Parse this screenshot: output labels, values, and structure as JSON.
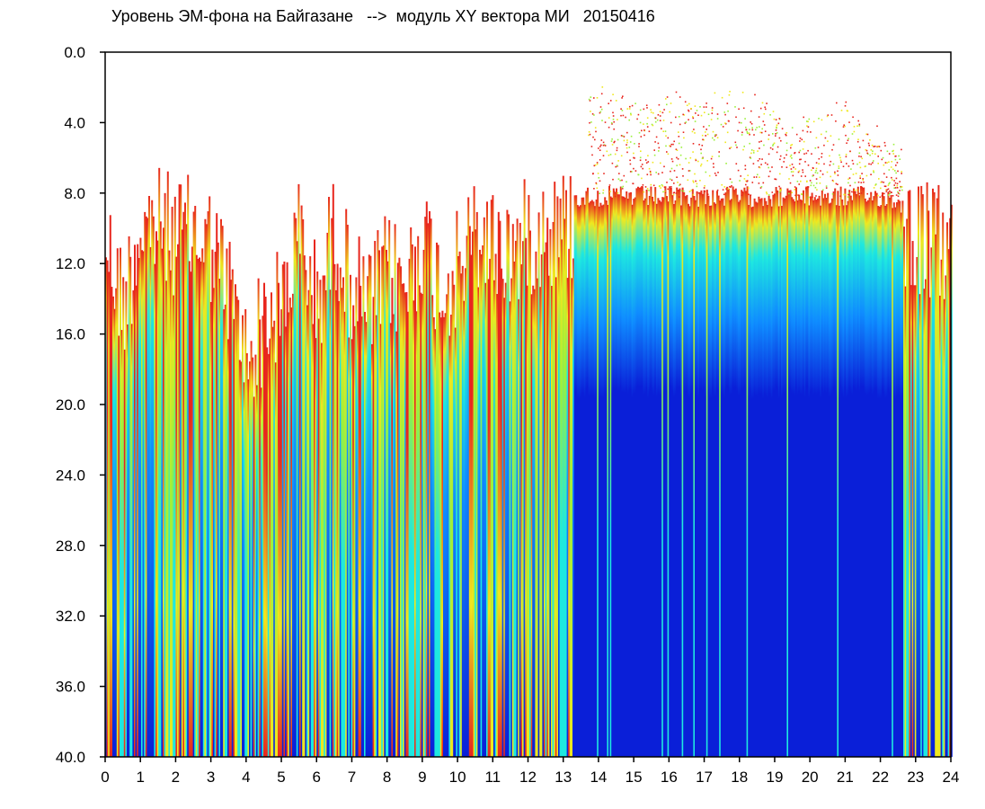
{
  "chart_data": {
    "type": "heatmap",
    "title": "Уровень ЭМ-фона на Байгазане   -->  модуль XY вектора МИ   20150416",
    "xlabel": "",
    "ylabel": "",
    "xlim": [
      0,
      24
    ],
    "ylim": [
      0,
      40
    ],
    "y_inverted": true,
    "x_ticks": [
      "0",
      "1",
      "2",
      "3",
      "4",
      "5",
      "6",
      "7",
      "8",
      "9",
      "10",
      "11",
      "12",
      "13",
      "14",
      "15",
      "16",
      "17",
      "18",
      "19",
      "20",
      "21",
      "22",
      "23",
      "24"
    ],
    "y_ticks": [
      "0.0",
      "4.0",
      "8.0",
      "12.0",
      "16.0",
      "20.0",
      "24.0",
      "28.0",
      "32.0",
      "36.0",
      "40.0"
    ],
    "colors": {
      "background": "#ffffff",
      "low": "#0a1fd8",
      "mid_low": "#0f8cff",
      "mid": "#1ee8e0",
      "mid_high": "#9cf03c",
      "high": "#f0e81e",
      "peak": "#e8261e"
    },
    "grid": false,
    "approximate_column_onset_depth": [
      [
        0.0,
        9.0
      ],
      [
        0.5,
        13.0
      ],
      [
        1.0,
        8.5
      ],
      [
        1.5,
        8.5
      ],
      [
        2.0,
        9.0
      ],
      [
        2.5,
        9.0
      ],
      [
        3.0,
        9.5
      ],
      [
        3.5,
        12.0
      ],
      [
        4.0,
        16.0
      ],
      [
        4.5,
        14.0
      ],
      [
        5.0,
        13.0
      ],
      [
        5.5,
        9.0
      ],
      [
        6.0,
        13.0
      ],
      [
        6.5,
        8.5
      ],
      [
        7.0,
        12.0
      ],
      [
        7.5,
        13.0
      ],
      [
        8.0,
        11.0
      ],
      [
        8.5,
        12.0
      ],
      [
        9.0,
        9.0
      ],
      [
        9.5,
        12.0
      ],
      [
        10.0,
        11.0
      ],
      [
        10.5,
        9.0
      ],
      [
        11.0,
        9.5
      ],
      [
        11.5,
        10.0
      ],
      [
        12.0,
        9.0
      ],
      [
        12.5,
        8.5
      ],
      [
        13.0,
        8.5
      ],
      [
        13.5,
        8.2
      ],
      [
        14.0,
        8.2
      ],
      [
        14.5,
        8.2
      ],
      [
        15.0,
        8.2
      ],
      [
        15.5,
        8.2
      ],
      [
        16.0,
        8.2
      ],
      [
        16.5,
        8.2
      ],
      [
        17.0,
        8.2
      ],
      [
        17.5,
        8.2
      ],
      [
        18.0,
        8.2
      ],
      [
        18.5,
        8.2
      ],
      [
        19.0,
        8.2
      ],
      [
        19.5,
        8.2
      ],
      [
        20.0,
        8.2
      ],
      [
        20.5,
        8.2
      ],
      [
        21.0,
        8.2
      ],
      [
        21.5,
        8.2
      ],
      [
        22.0,
        8.2
      ],
      [
        22.5,
        8.5
      ],
      [
        23.0,
        9.0
      ],
      [
        23.5,
        9.5
      ],
      [
        24.0,
        9.5
      ]
    ],
    "approximate_upper_sparse_band": [
      [
        13.8,
        1.5
      ],
      [
        15.0,
        2.0
      ],
      [
        16.5,
        2.0
      ],
      [
        17.5,
        1.5
      ],
      [
        18.5,
        2.0
      ],
      [
        19.5,
        3.5
      ],
      [
        21.0,
        2.5
      ],
      [
        22.5,
        5.0
      ]
    ]
  }
}
